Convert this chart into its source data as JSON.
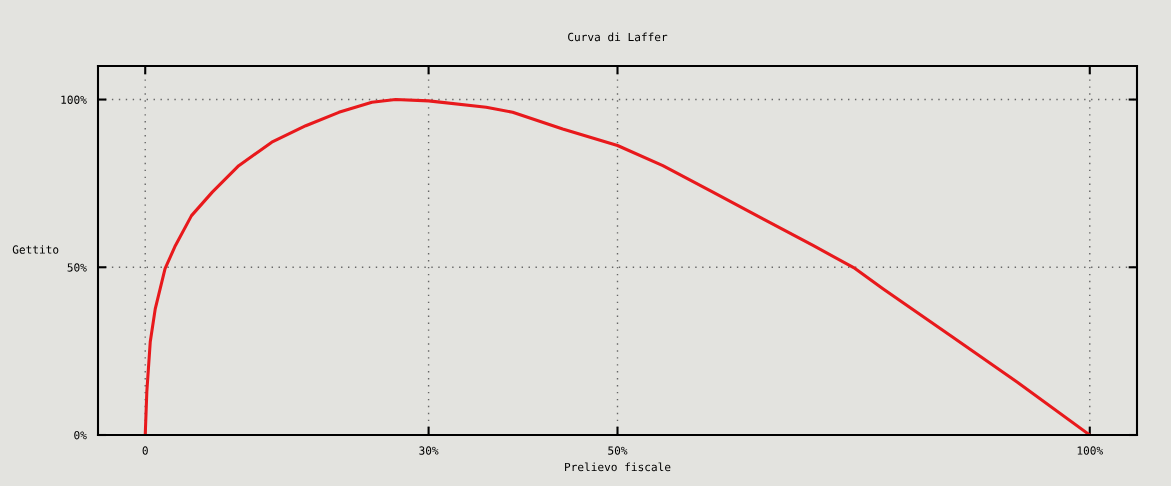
{
  "chart_data": {
    "type": "line",
    "title": "Curva di Laffer",
    "xlabel": "Prelievo fiscale",
    "ylabel": "Gettito",
    "x": [
      0,
      0.17,
      0.53,
      1.06,
      2.1,
      3.2,
      4.9,
      7.1,
      9.9,
      13.4,
      17.0,
      20.5,
      24.0,
      26.5,
      30.0,
      36.1,
      38.9,
      44.2,
      50.0,
      54.8,
      60.1,
      65.4,
      70.7,
      75.0,
      78.1,
      85.2,
      92.3,
      100
    ],
    "series": [
      {
        "color": "#e8191c",
        "values": [
          0,
          12.9,
          27.7,
          37.6,
          49.6,
          56.5,
          65.4,
          72.4,
          80.3,
          87.3,
          92.2,
          96.2,
          99.2,
          100,
          99.6,
          97.7,
          96.2,
          91.2,
          86.3,
          80.3,
          72.4,
          64.4,
          56.5,
          49.9,
          43.6,
          29.7,
          15.8,
          0
        ]
      }
    ],
    "xlim": [
      -5,
      105
    ],
    "ylim": [
      0,
      110
    ],
    "xticks": [
      0,
      {
        "value": 30,
        "label": "30%"
      },
      {
        "value": 50,
        "label": "50%"
      },
      {
        "value": 100,
        "label": "100%"
      }
    ],
    "yticks": [
      {
        "value": 0,
        "label": "0%"
      },
      {
        "value": 50,
        "label": "50%"
      },
      {
        "value": 100,
        "label": "100%"
      }
    ],
    "grid": true,
    "legend": false,
    "marker": "none",
    "line_style": "solid"
  }
}
